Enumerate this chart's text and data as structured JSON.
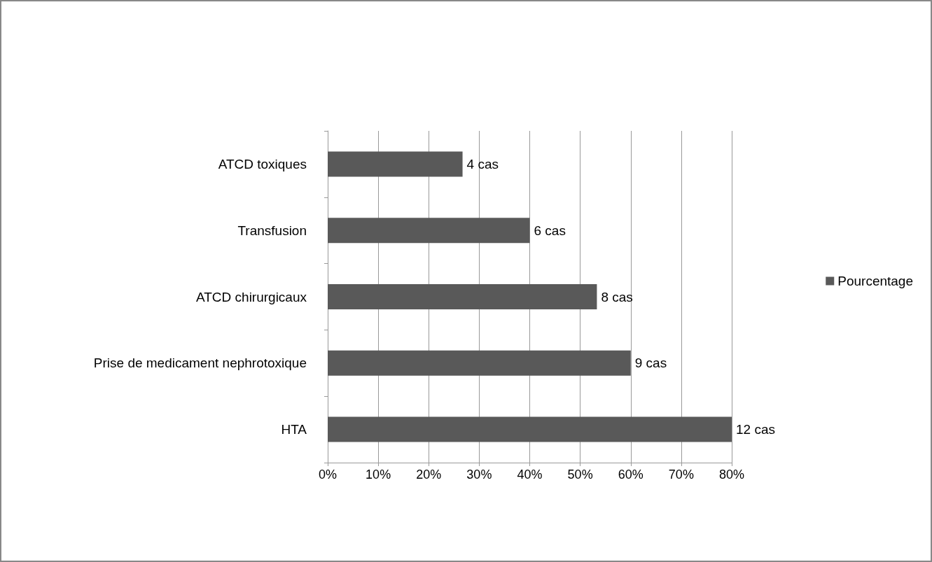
{
  "chart_data": {
    "type": "bar",
    "orientation": "horizontal",
    "categories": [
      "ATCD toxiques",
      "Transfusion",
      "ATCD chirurgicaux",
      "Prise de medicament nephrotoxique",
      "HTA"
    ],
    "series": [
      {
        "name": "Pourcentage",
        "color": "#595959",
        "values": [
          26.7,
          40,
          53.3,
          60,
          80
        ]
      }
    ],
    "annotations": [
      {
        "text": "4 cas",
        "x": 26.7,
        "y": "ATCD toxiques"
      },
      {
        "text": "6 cas",
        "x": 40,
        "y": "Transfusion"
      },
      {
        "text": "8 cas",
        "x": 53.3,
        "y": "ATCD chirurgicaux"
      },
      {
        "text": "9 cas",
        "x": 60,
        "y": "Prise de medicament nephrotoxique"
      },
      {
        "text": "12 cas",
        "x": 80,
        "y": "HTA"
      }
    ],
    "xlim": [
      0,
      80
    ],
    "xticks": [
      {
        "value": 0,
        "label": "0%"
      },
      {
        "value": 10,
        "label": "10%"
      },
      {
        "value": 20,
        "label": "20%"
      },
      {
        "value": 30,
        "label": "30%"
      },
      {
        "value": 40,
        "label": "40%"
      },
      {
        "value": 50,
        "label": "50%"
      },
      {
        "value": 60,
        "label": "60%"
      },
      {
        "value": 70,
        "label": "70%"
      },
      {
        "value": 80,
        "label": "80%"
      }
    ],
    "grid": "x",
    "legend": "right"
  }
}
